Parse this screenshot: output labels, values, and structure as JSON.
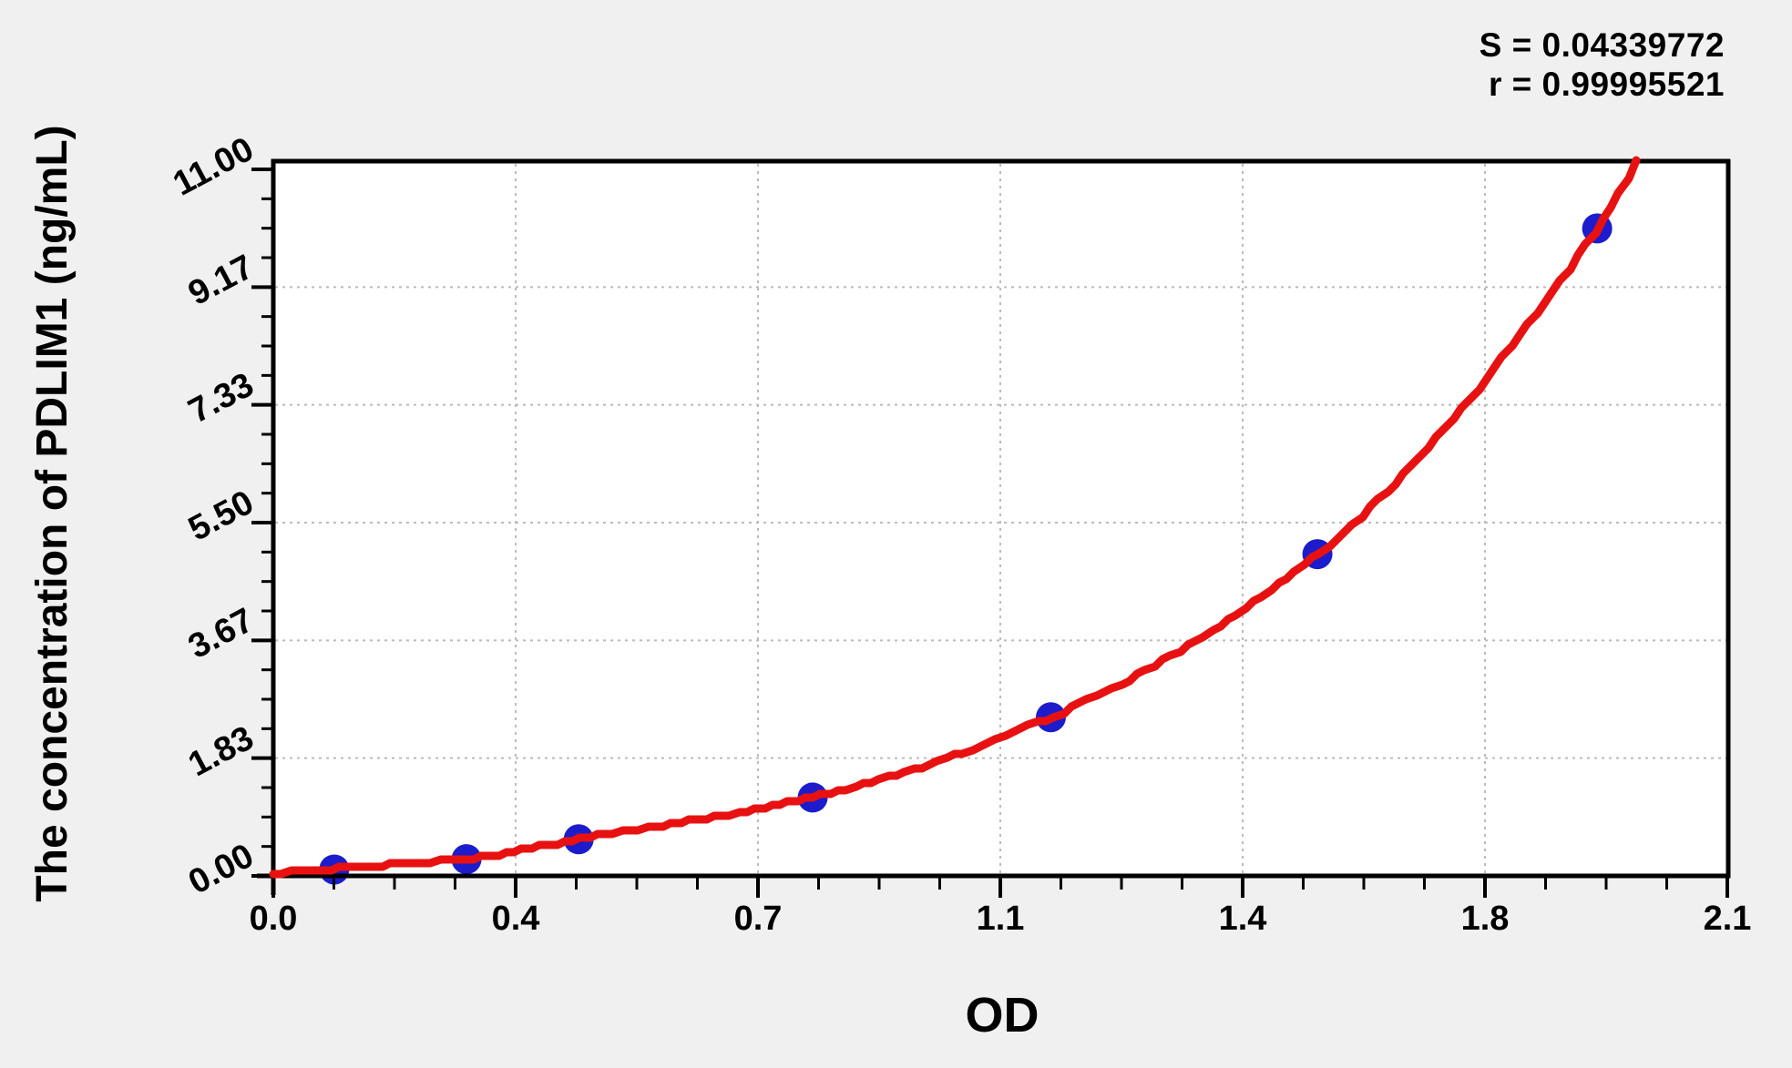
{
  "chart_data": {
    "type": "scatter",
    "title": "",
    "xlabel": "OD",
    "ylabel": "The concentration of PDLIM1 (ng/mL)",
    "xlim": [
      0,
      2.1
    ],
    "ylim": [
      0,
      11.0
    ],
    "grid": "dashed gray lines at interior major ticks, both axes",
    "legend": "none",
    "x_ticks": {
      "values": [
        0,
        0.35,
        0.7,
        1.05,
        1.4,
        1.75,
        2.1
      ],
      "labels": [
        "0.0",
        "0.4",
        "0.7",
        "1.1",
        "1.4",
        "1.8",
        "2.1"
      ]
    },
    "y_ticks": {
      "values": [
        0,
        1.8333,
        3.6667,
        5.5,
        7.3333,
        9.1667,
        11.0
      ],
      "labels": [
        "0.00",
        "1.83",
        "3.67",
        "5.50",
        "7.33",
        "9.17",
        "11.00"
      ]
    },
    "x_minor_divisions_per_major": 4,
    "y_minor_divisions_per_major": 4,
    "points": [
      {
        "od": 0.088,
        "conc": 0.1
      },
      {
        "od": 0.279,
        "conc": 0.26
      },
      {
        "od": 0.441,
        "conc": 0.57
      },
      {
        "od": 0.779,
        "conc": 1.22
      },
      {
        "od": 1.123,
        "conc": 2.47
      },
      {
        "od": 1.508,
        "conc": 5.01
      },
      {
        "od": 1.912,
        "conc": 10.08
      }
    ],
    "curve": {
      "description": "red regression / standard curve through the data points, extending slightly past the top axis frame",
      "anchors": [
        [
          0.0,
          0.035
        ],
        [
          0.088,
          0.115
        ],
        [
          0.279,
          0.27
        ],
        [
          0.441,
          0.575
        ],
        [
          0.779,
          1.22
        ],
        [
          1.123,
          2.47
        ],
        [
          1.508,
          5.01
        ],
        [
          1.912,
          10.08
        ],
        [
          1.974,
          11.23
        ]
      ]
    },
    "stats": {
      "s_line": "S = 0.04339772",
      "r_line": "r = 0.99995521",
      "S": 0.04339772,
      "r": 0.99995521
    },
    "colors": {
      "curve": "#e81111",
      "point": "#1c1ccd",
      "grid": "#bbbbbb",
      "axis": "#000000",
      "text": "#000000",
      "plot_bg": "#ffffff",
      "page_bg": "#f0f0f0"
    }
  }
}
